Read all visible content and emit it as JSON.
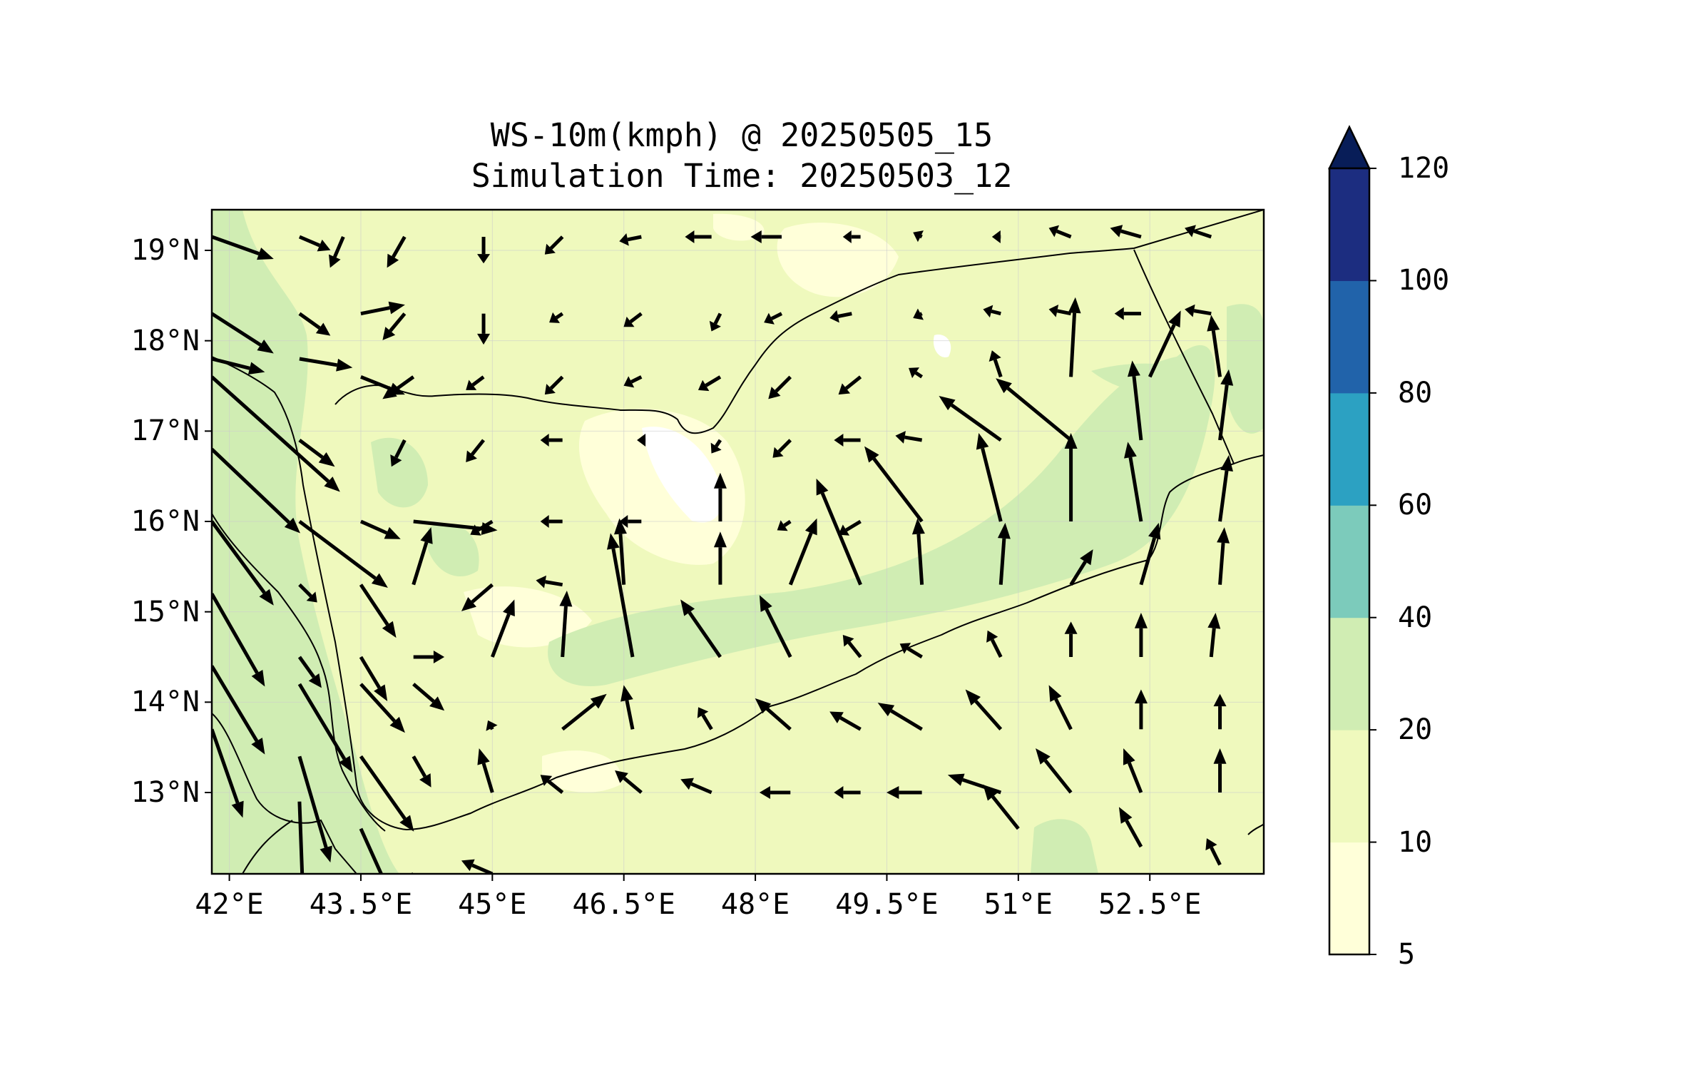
{
  "title": {
    "line1": "WS-10m(kmph) @ 20250505_15",
    "line2": "Simulation Time: 20250503_12"
  },
  "map": {
    "lon_range": [
      41.8,
      53.8
    ],
    "lat_range": [
      12.1,
      19.45
    ],
    "lat_ticks": [
      {
        "value": 19,
        "label": "19°N"
      },
      {
        "value": 18,
        "label": "18°N"
      },
      {
        "value": 17,
        "label": "17°N"
      },
      {
        "value": 16,
        "label": "16°N"
      },
      {
        "value": 15,
        "label": "15°N"
      },
      {
        "value": 14,
        "label": "14°N"
      },
      {
        "value": 13,
        "label": "13°N"
      }
    ],
    "lon_ticks": [
      {
        "value": 42,
        "label": "42°E"
      },
      {
        "value": 43.5,
        "label": "43.5°E"
      },
      {
        "value": 45,
        "label": "45°E"
      },
      {
        "value": 46.5,
        "label": "46.5°E"
      },
      {
        "value": 48,
        "label": "48°E"
      },
      {
        "value": 49.5,
        "label": "49.5°E"
      },
      {
        "value": 51,
        "label": "51°E"
      },
      {
        "value": 52.5,
        "label": "52.5°E"
      }
    ],
    "gridlines": true
  },
  "colorbar": {
    "levels": [
      {
        "value": 5,
        "label": "5"
      },
      {
        "value": 10,
        "label": "10"
      },
      {
        "value": 20,
        "label": "20"
      },
      {
        "value": 40,
        "label": "40"
      },
      {
        "value": 60,
        "label": "60"
      },
      {
        "value": 80,
        "label": "80"
      },
      {
        "value": 100,
        "label": "100"
      },
      {
        "value": 120,
        "label": "120"
      }
    ],
    "colors": [
      "#ffffd9",
      "#eff9bd",
      "#d0edb3",
      "#7ccbbb",
      "#2ca1c2",
      "#2163aa",
      "#1c2d80"
    ],
    "extend_color": "#081d58",
    "extend": "max"
  },
  "chart_data": {
    "type": "quiver",
    "variable": "WS-10m(kmph)",
    "vectors_columns": [
      "lon",
      "lat",
      "u_kmph",
      "v_kmph"
    ],
    "vectors": [
      [
        41.8,
        19.15,
        28,
        -10
      ],
      [
        42.8,
        19.15,
        14,
        -6
      ],
      [
        43.3,
        19.15,
        -6,
        -14
      ],
      [
        44.0,
        19.15,
        -8,
        -14
      ],
      [
        44.9,
        19.15,
        0,
        -12
      ],
      [
        45.8,
        19.15,
        -8,
        -8
      ],
      [
        46.7,
        19.15,
        -10,
        -2
      ],
      [
        47.5,
        19.15,
        -12,
        0
      ],
      [
        48.3,
        19.15,
        -14,
        0
      ],
      [
        49.2,
        19.15,
        -8,
        0
      ],
      [
        49.9,
        19.15,
        -4,
        2
      ],
      [
        50.8,
        19.15,
        -4,
        0
      ],
      [
        51.6,
        19.15,
        -10,
        4
      ],
      [
        52.4,
        19.15,
        -14,
        4
      ],
      [
        53.2,
        19.15,
        -12,
        4
      ],
      [
        41.8,
        18.3,
        28,
        -18
      ],
      [
        42.8,
        18.3,
        14,
        -10
      ],
      [
        43.5,
        18.3,
        20,
        4
      ],
      [
        44.0,
        18.3,
        -10,
        -12
      ],
      [
        44.9,
        18.3,
        0,
        -14
      ],
      [
        45.8,
        18.3,
        -6,
        -4
      ],
      [
        46.7,
        18.3,
        -8,
        -6
      ],
      [
        47.6,
        18.3,
        -4,
        -8
      ],
      [
        48.3,
        18.3,
        -8,
        -4
      ],
      [
        49.1,
        18.3,
        -10,
        -2
      ],
      [
        49.9,
        18.3,
        -4,
        -2
      ],
      [
        50.8,
        18.3,
        -8,
        2
      ],
      [
        51.6,
        18.3,
        -10,
        2
      ],
      [
        52.4,
        18.3,
        -12,
        0
      ],
      [
        53.2,
        18.3,
        -12,
        2
      ],
      [
        41.8,
        17.8,
        24,
        -6
      ],
      [
        42.8,
        17.8,
        24,
        -4
      ],
      [
        43.5,
        17.6,
        20,
        -8
      ],
      [
        44.1,
        17.6,
        -14,
        -10
      ],
      [
        44.9,
        17.6,
        -8,
        -6
      ],
      [
        45.8,
        17.6,
        -8,
        -8
      ],
      [
        46.7,
        17.6,
        -8,
        -4
      ],
      [
        47.6,
        17.6,
        -10,
        -6
      ],
      [
        48.4,
        17.6,
        -10,
        -10
      ],
      [
        49.2,
        17.6,
        -10,
        -8
      ],
      [
        49.9,
        17.6,
        -6,
        4
      ],
      [
        50.8,
        17.6,
        -4,
        12
      ],
      [
        51.6,
        17.6,
        2,
        36
      ],
      [
        52.5,
        17.6,
        14,
        30
      ],
      [
        53.3,
        17.6,
        -4,
        28
      ],
      [
        41.8,
        17.6,
        58,
        -52
      ],
      [
        42.8,
        16.9,
        16,
        -12
      ],
      [
        44.0,
        16.9,
        -6,
        -12
      ],
      [
        44.9,
        16.9,
        -8,
        -10
      ],
      [
        45.8,
        16.9,
        -10,
        0
      ],
      [
        46.7,
        16.9,
        -2,
        0
      ],
      [
        47.6,
        16.9,
        -4,
        -6
      ],
      [
        48.4,
        16.9,
        -8,
        -8
      ],
      [
        49.2,
        16.9,
        -12,
        0
      ],
      [
        49.9,
        16.9,
        -12,
        2
      ],
      [
        50.8,
        16.9,
        -28,
        20
      ],
      [
        51.6,
        16.9,
        -34,
        28
      ],
      [
        52.4,
        16.9,
        -4,
        36
      ],
      [
        53.3,
        16.9,
        4,
        32
      ],
      [
        41.8,
        16.8,
        40,
        -38
      ],
      [
        42.8,
        16.0,
        40,
        -30
      ],
      [
        43.5,
        16.0,
        18,
        -8
      ],
      [
        44.1,
        16.0,
        38,
        -4
      ],
      [
        45.0,
        16.0,
        -10,
        -6
      ],
      [
        45.8,
        16.0,
        -10,
        0
      ],
      [
        46.7,
        16.0,
        -10,
        0
      ],
      [
        47.6,
        16.0,
        0,
        22
      ],
      [
        48.4,
        16.0,
        -6,
        -4
      ],
      [
        49.2,
        16.0,
        -10,
        -6
      ],
      [
        49.9,
        16.0,
        -26,
        34
      ],
      [
        50.8,
        16.0,
        -10,
        40
      ],
      [
        51.6,
        16.0,
        0,
        40
      ],
      [
        52.4,
        16.0,
        -6,
        36
      ],
      [
        53.3,
        16.0,
        4,
        30
      ],
      [
        41.8,
        16.0,
        28,
        -38
      ],
      [
        42.8,
        15.3,
        8,
        -8
      ],
      [
        43.5,
        15.3,
        16,
        -24
      ],
      [
        44.1,
        15.3,
        8,
        26
      ],
      [
        45.0,
        15.3,
        -14,
        -12
      ],
      [
        45.8,
        15.3,
        -12,
        2
      ],
      [
        46.5,
        15.3,
        -2,
        30
      ],
      [
        47.6,
        15.3,
        0,
        24
      ],
      [
        48.4,
        15.3,
        12,
        30
      ],
      [
        49.2,
        15.3,
        -20,
        48
      ],
      [
        49.9,
        15.3,
        -2,
        30
      ],
      [
        50.8,
        15.3,
        2,
        28
      ],
      [
        51.6,
        15.3,
        10,
        16
      ],
      [
        52.4,
        15.3,
        8,
        28
      ],
      [
        53.3,
        15.3,
        2,
        26
      ],
      [
        41.8,
        15.2,
        24,
        -42
      ],
      [
        42.8,
        14.5,
        10,
        -14
      ],
      [
        43.5,
        14.5,
        12,
        -20
      ],
      [
        44.1,
        14.5,
        14,
        0
      ],
      [
        45.0,
        14.5,
        10,
        26
      ],
      [
        45.8,
        14.5,
        2,
        30
      ],
      [
        46.6,
        14.5,
        -10,
        56
      ],
      [
        47.6,
        14.5,
        -18,
        26
      ],
      [
        48.4,
        14.5,
        -14,
        28
      ],
      [
        49.2,
        14.5,
        -8,
        10
      ],
      [
        49.9,
        14.5,
        -10,
        6
      ],
      [
        50.8,
        14.5,
        -6,
        12
      ],
      [
        51.6,
        14.5,
        0,
        16
      ],
      [
        52.4,
        14.5,
        0,
        20
      ],
      [
        53.2,
        14.5,
        2,
        20
      ],
      [
        41.8,
        14.4,
        24,
        -40
      ],
      [
        42.8,
        14.2,
        24,
        -40
      ],
      [
        43.5,
        14.2,
        20,
        -22
      ],
      [
        44.1,
        14.2,
        14,
        -12
      ],
      [
        45.0,
        13.7,
        -2,
        4
      ],
      [
        45.8,
        13.7,
        20,
        16
      ],
      [
        46.6,
        13.7,
        -4,
        20
      ],
      [
        47.5,
        13.7,
        -6,
        10
      ],
      [
        48.4,
        13.7,
        -16,
        14
      ],
      [
        49.2,
        13.7,
        -14,
        8
      ],
      [
        49.9,
        13.7,
        -20,
        12
      ],
      [
        50.8,
        13.7,
        -16,
        18
      ],
      [
        51.6,
        13.7,
        -10,
        20
      ],
      [
        52.4,
        13.7,
        0,
        18
      ],
      [
        53.3,
        13.7,
        0,
        16
      ],
      [
        41.8,
        13.7,
        14,
        -40
      ],
      [
        42.8,
        13.4,
        14,
        -48
      ],
      [
        43.5,
        13.4,
        24,
        -34
      ],
      [
        44.1,
        13.4,
        8,
        -14
      ],
      [
        45.0,
        13.0,
        -6,
        20
      ],
      [
        45.8,
        13.0,
        -10,
        8
      ],
      [
        46.7,
        13.0,
        -12,
        10
      ],
      [
        47.5,
        13.0,
        -14,
        6
      ],
      [
        48.4,
        13.0,
        -14,
        0
      ],
      [
        49.2,
        13.0,
        -12,
        0
      ],
      [
        49.9,
        13.0,
        -16,
        0
      ],
      [
        50.8,
        13.0,
        -24,
        8
      ],
      [
        51.6,
        13.0,
        -16,
        20
      ],
      [
        52.4,
        13.0,
        -8,
        20
      ],
      [
        53.3,
        13.0,
        0,
        20
      ],
      [
        42.8,
        12.9,
        2,
        -54
      ],
      [
        43.5,
        12.6,
        18,
        -40
      ],
      [
        44.1,
        12.1,
        -8,
        -6
      ],
      [
        45.0,
        12.1,
        -14,
        6
      ],
      [
        51.0,
        12.6,
        -16,
        20
      ],
      [
        52.4,
        12.4,
        -10,
        18
      ],
      [
        53.3,
        12.2,
        -6,
        12
      ]
    ]
  }
}
